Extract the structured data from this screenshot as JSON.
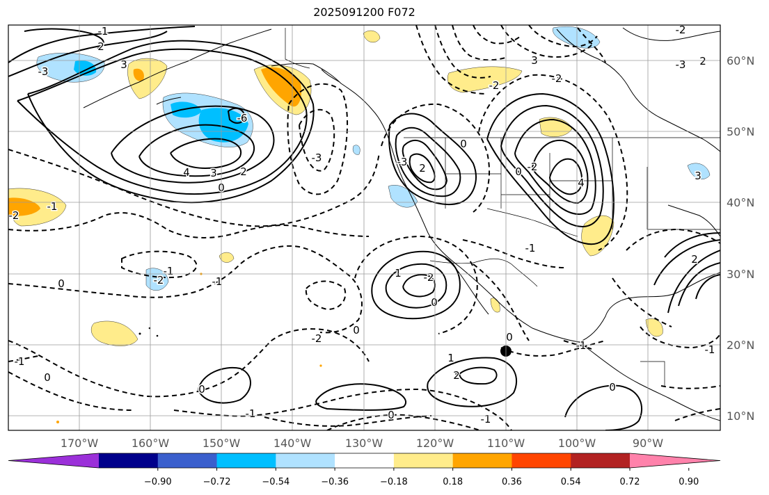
{
  "title": "2025091200 F072",
  "map": {
    "lat_labels": [
      "60°N",
      "50°N",
      "40°N",
      "30°N",
      "20°N",
      "10°N"
    ],
    "lon_labels": [
      "170°W",
      "160°W",
      "150°W",
      "140°W",
      "130°W",
      "120°W",
      "110°W",
      "100°W",
      "90°W"
    ],
    "contour_labels": [
      "-3",
      "3",
      "2",
      "-1",
      "-3",
      "-6",
      "4",
      "3",
      "2",
      "-2",
      "-1",
      "-3",
      "2",
      "0",
      "-1",
      "-2",
      "-1",
      "-2",
      "1",
      "-2",
      "-3",
      "2",
      "-2",
      "4",
      "0",
      "-1",
      "-2",
      "-2",
      "-1",
      "0",
      "1",
      "2",
      "0",
      "-1",
      "0",
      "0",
      "-1",
      "0",
      "1",
      "0",
      "-1",
      "0",
      "-1",
      "3",
      "-2",
      "0",
      "2",
      "-1",
      "3",
      "0"
    ],
    "marker": "storm-center-dot"
  },
  "colorbar": {
    "colors": [
      "#9b30d9",
      "#00008b",
      "#3a5fcd",
      "#00bfff",
      "#b0e2ff",
      "#ffffff",
      "#ffec8b",
      "#ffa500",
      "#ff4500",
      "#b22222",
      "#ff82ab"
    ],
    "tick_labels": [
      "−0.90",
      "−0.72",
      "−0.54",
      "−0.36",
      "−0.18",
      "0.18",
      "0.36",
      "0.54",
      "0.72",
      "0.90"
    ]
  },
  "shading_colors": {
    "light_blue": "#b0e2ff",
    "deep_sky_blue": "#00bfff",
    "light_yellow": "#ffec8b",
    "orange": "#ffa500"
  }
}
